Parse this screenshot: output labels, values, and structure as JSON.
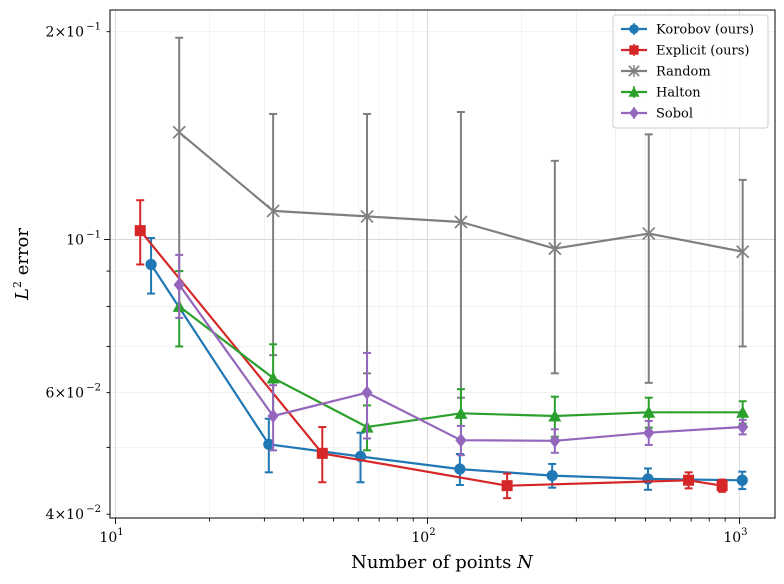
{
  "chart_data": {
    "type": "line",
    "title": "",
    "xlabel": "Number of points N",
    "ylabel": "L2 error",
    "xscale": "log",
    "yscale": "log",
    "xlim": [
      9.6,
      1300
    ],
    "ylim": [
      0.0395,
      0.215
    ],
    "grid": true,
    "legend_position": "top-right",
    "x_ticks": [
      {
        "value": 10,
        "base": "10",
        "exp": "1"
      },
      {
        "value": 100,
        "base": "10",
        "exp": "2"
      },
      {
        "value": 1000,
        "base": "10",
        "exp": "3"
      }
    ],
    "y_ticks": [
      {
        "value": 0.04,
        "mant": "4",
        "exp": "−2"
      },
      {
        "value": 0.06,
        "mant": "6",
        "exp": "−2"
      },
      {
        "value": 0.1,
        "mant": "",
        "exp": "−1"
      },
      {
        "value": 0.2,
        "mant": "2",
        "exp": "−1"
      }
    ],
    "series": [
      {
        "name": "Korobov (ours)",
        "color": "#1f77b4",
        "marker": "circle",
        "x": [
          13,
          31,
          61,
          127,
          251,
          509,
          1021
        ],
        "y": [
          0.092,
          0.0505,
          0.0485,
          0.0465,
          0.0455,
          0.045,
          0.0448
        ],
        "err": [
          0.0085,
          0.0045,
          0.004,
          0.0024,
          0.0018,
          0.0016,
          0.0013
        ]
      },
      {
        "name": "Explicit (ours)",
        "color": "#d62728",
        "marker": "square",
        "x": [
          12,
          46,
          180,
          687,
          880
        ],
        "y": [
          0.103,
          0.049,
          0.044,
          0.0448,
          0.044
        ],
        "err": [
          0.011,
          0.0045,
          0.0018,
          0.0012,
          0.0009
        ]
      },
      {
        "name": "Random",
        "color": "#7f7f7f",
        "marker": "x",
        "x": [
          16,
          32,
          64,
          128,
          256,
          512,
          1024
        ],
        "y": [
          0.143,
          0.11,
          0.108,
          0.106,
          0.097,
          0.102,
          0.096
        ],
        "err": [
          0.053,
          0.042,
          0.044,
          0.047,
          0.033,
          0.04,
          0.026
        ]
      },
      {
        "name": "Halton",
        "color": "#2ca02c",
        "marker": "triangle",
        "x": [
          16,
          32,
          64,
          128,
          256,
          512,
          1024
        ],
        "y": [
          0.08,
          0.063,
          0.0535,
          0.056,
          0.0555,
          0.0562,
          0.0562
        ],
        "err": [
          0.01,
          0.0075,
          0.004,
          0.0047,
          0.0037,
          0.0028,
          0.0021
        ]
      },
      {
        "name": "Sobol",
        "color": "#9467bd",
        "marker": "diamond",
        "x": [
          16,
          32,
          64,
          128,
          256,
          512,
          1024
        ],
        "y": [
          0.086,
          0.0555,
          0.06,
          0.0512,
          0.0511,
          0.0525,
          0.0535
        ],
        "err": [
          0.009,
          0.006,
          0.0085,
          0.0025,
          0.002,
          0.0021,
          0.0013
        ]
      }
    ]
  }
}
